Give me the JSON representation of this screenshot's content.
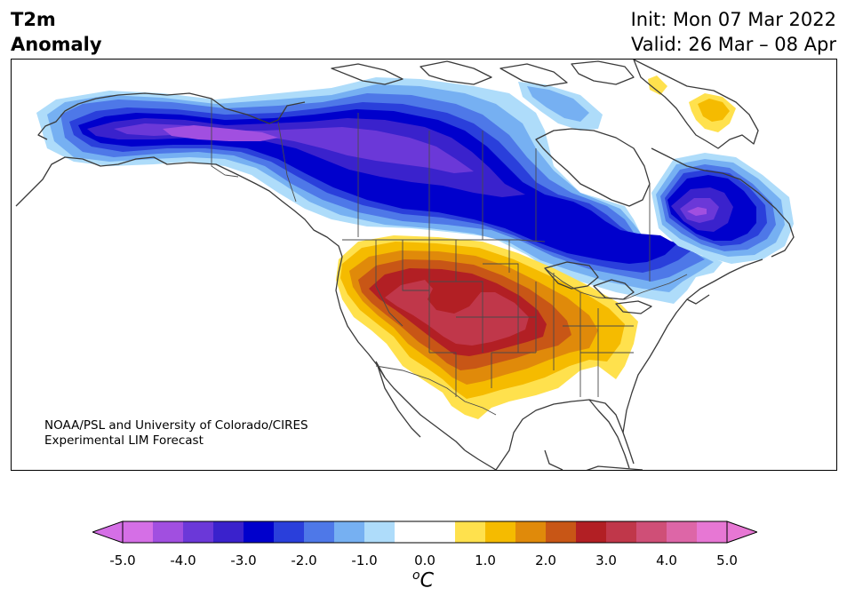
{
  "header": {
    "title_line1": "T2m",
    "title_line2": "Anomaly",
    "init": "Init: Mon 07 Mar 2022",
    "valid": "Valid: 26 Mar – 08 Apr"
  },
  "credit": {
    "line1": "NOAA/PSL and University of Colorado/CIRES",
    "line2": "Experimental LIM Forecast"
  },
  "colorbar": {
    "unit_symbol": "o",
    "unit_letter": "C",
    "ticks": [
      "-5.0",
      "-4.0",
      "-3.0",
      "-2.0",
      "-1.0",
      "0.0",
      "1.0",
      "2.0",
      "3.0",
      "4.0",
      "5.0"
    ],
    "levels": [
      -5.0,
      -4.5,
      -4.0,
      -3.5,
      -3.0,
      -2.5,
      -2.0,
      -1.5,
      -1.0,
      -0.5,
      0.5,
      1.0,
      1.5,
      2.0,
      2.5,
      3.0,
      3.5,
      4.0,
      4.5,
      5.0
    ],
    "colors": [
      "#d56fe6",
      "#a14fe0",
      "#6b38d8",
      "#3a22cc",
      "#0000cc",
      "#2a3fdb",
      "#4e78e8",
      "#76b0f2",
      "#aedcfa",
      "#ffffff",
      "#ffe14d",
      "#f5bb00",
      "#e08a0a",
      "#c85616",
      "#b21f24",
      "#c0374a",
      "#cf4f77",
      "#dd66a7",
      "#e777d4",
      "#e777d4"
    ],
    "low_extend_color": "#d56fe6",
    "high_extend_color": "#e777d4"
  },
  "map": {
    "region": "North America",
    "features": [
      "coastlines",
      "country-borders",
      "state-borders"
    ],
    "anomaly_regions": [
      {
        "name": "northwest-cold-core",
        "min_anomaly": -5.0
      },
      {
        "name": "hudson-bay-cold",
        "min_anomaly": -1.0
      },
      {
        "name": "quebec-cold-core",
        "min_anomaly": -4.0
      },
      {
        "name": "southwest-warm-core",
        "max_anomaly": 3.5
      },
      {
        "name": "greenland-warm",
        "max_anomaly": 1.0
      }
    ]
  }
}
